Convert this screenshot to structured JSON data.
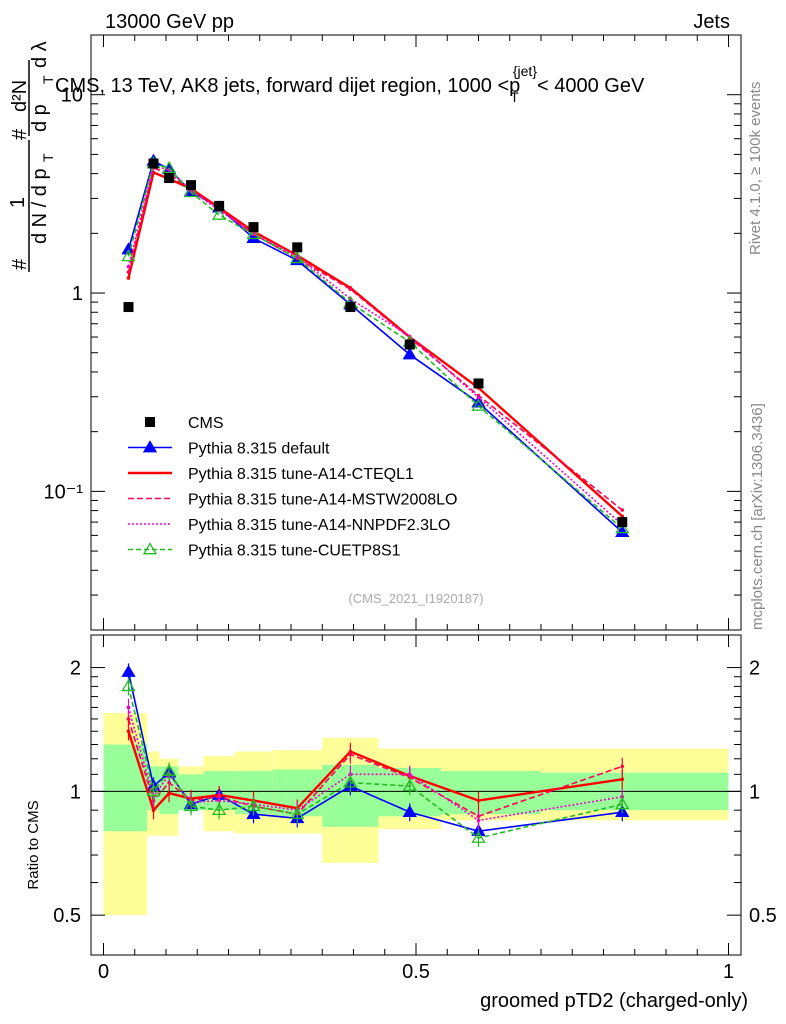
{
  "header": {
    "left": "13000 GeV pp",
    "right": "Jets"
  },
  "side_labels": {
    "rivet": "Rivet 4.1.0, ≥ 100k events",
    "mcplots": "mcplots.cern.ch [arXiv:1306.3436]"
  },
  "chart_data": {
    "type": "line",
    "title": "CMS, 13 TeV, AK8 jets, forward dijet region, 1000 <p_T^{jet}< 4000 GeV",
    "title_parts": {
      "pre": "CMS, 13 TeV, AK8 jets, forward dijet region, 1000 <",
      "p": "p",
      "sub": "T",
      "sup": "{jet}",
      "post": "< 4000 GeV"
    },
    "ylabel_parts": {
      "hash1": "#",
      "one": "1",
      "dn_dpt": "d N / d p",
      "T1": "T",
      "hash2": "#",
      "d2N": "d²N",
      "dpt_dl": "d p",
      "T2": "T",
      "dlambda": "d λ"
    },
    "xlabel": "groomed pTD2 (charged-only)",
    "ratio_ylabel": "Ratio to CMS",
    "watermark": "(CMS_2021_I1920187)",
    "xlim": [
      0,
      1
    ],
    "ylim_main": [
      0.02,
      20
    ],
    "ylim_ratio": [
      0.4,
      2.4
    ],
    "x_ticks": [
      {
        "v": 0,
        "label": "0"
      },
      {
        "v": 0.5,
        "label": "0.5"
      },
      {
        "v": 1,
        "label": "1"
      }
    ],
    "y_ticks_main": [
      {
        "v": 0.1,
        "label": "10⁻¹"
      },
      {
        "v": 1,
        "label": "1"
      },
      {
        "v": 10,
        "label": "10"
      }
    ],
    "y_ticks_ratio": [
      {
        "v": 0.5,
        "label": "0.5"
      },
      {
        "v": 1,
        "label": "1"
      },
      {
        "v": 2,
        "label": "2"
      }
    ],
    "bins": [
      [
        0,
        0.07
      ],
      [
        0.07,
        0.09
      ],
      [
        0.09,
        0.12
      ],
      [
        0.12,
        0.16
      ],
      [
        0.16,
        0.21
      ],
      [
        0.21,
        0.27
      ],
      [
        0.27,
        0.35
      ],
      [
        0.35,
        0.44
      ],
      [
        0.44,
        0.54
      ],
      [
        0.54,
        0.7
      ],
      [
        0.7,
        1.0
      ]
    ],
    "x": [
      0.04,
      0.08,
      0.105,
      0.14,
      0.185,
      0.24,
      0.31,
      0.395,
      0.49,
      0.6,
      0.83
    ],
    "cms": [
      0.85,
      4.5,
      3.8,
      3.5,
      2.75,
      2.15,
      1.7,
      0.85,
      0.55,
      0.35,
      0.07
    ],
    "band_inner": [
      [
        0.8,
        1.3
      ],
      [
        0.9,
        1.15
      ],
      [
        0.88,
        1.15
      ],
      [
        0.9,
        1.1
      ],
      [
        0.9,
        1.12
      ],
      [
        0.88,
        1.12
      ],
      [
        0.87,
        1.13
      ],
      [
        0.82,
        1.16
      ],
      [
        0.87,
        1.14
      ],
      [
        0.88,
        1.12
      ],
      [
        0.9,
        1.11
      ]
    ],
    "band_outer": [
      [
        0.5,
        1.55
      ],
      [
        0.78,
        1.25
      ],
      [
        0.78,
        1.2
      ],
      [
        0.9,
        1.15
      ],
      [
        0.8,
        1.22
      ],
      [
        0.79,
        1.25
      ],
      [
        0.79,
        1.26
      ],
      [
        0.67,
        1.35
      ],
      [
        0.81,
        1.27
      ],
      [
        0.85,
        1.27
      ],
      [
        0.85,
        1.27
      ]
    ],
    "series": [
      {
        "name": "Pythia 8.315 default",
        "color": "#0000ff",
        "dash": "",
        "marker": "tri-filled",
        "ratio": [
          1.95,
          1.03,
          1.11,
          0.93,
          0.98,
          0.88,
          0.86,
          1.03,
          0.89,
          0.8,
          0.89
        ]
      },
      {
        "name": "Pythia 8.315 tune-A14-CTEQL1",
        "color": "#ff0000",
        "dash": "",
        "marker": "none",
        "ratio": [
          1.4,
          0.9,
          0.99,
          0.96,
          0.98,
          0.95,
          0.91,
          1.25,
          1.09,
          0.95,
          1.07
        ]
      },
      {
        "name": "Pythia 8.315 tune-A14-MSTW2008LO",
        "color": "#ff0055",
        "dash": "6,3",
        "marker": "none",
        "ratio": [
          1.5,
          0.95,
          1.05,
          0.95,
          0.97,
          0.92,
          0.88,
          1.23,
          1.08,
          0.87,
          1.15
        ]
      },
      {
        "name": "Pythia 8.315 tune-A14-NNPDF2.3LO",
        "color": "#ee00cc",
        "dash": "2,2",
        "marker": "none",
        "ratio": [
          1.6,
          0.97,
          1.1,
          0.94,
          0.95,
          0.93,
          0.9,
          1.1,
          1.1,
          0.85,
          0.97
        ]
      },
      {
        "name": "Pythia 8.315 tune-CUETP8S1",
        "color": "#22bb22",
        "dash": "5,3",
        "marker": "tri-open",
        "ratio": [
          1.8,
          1.0,
          1.12,
          0.92,
          0.9,
          0.92,
          0.88,
          1.05,
          1.03,
          0.77,
          0.93
        ]
      }
    ],
    "legend_cms": "CMS"
  }
}
